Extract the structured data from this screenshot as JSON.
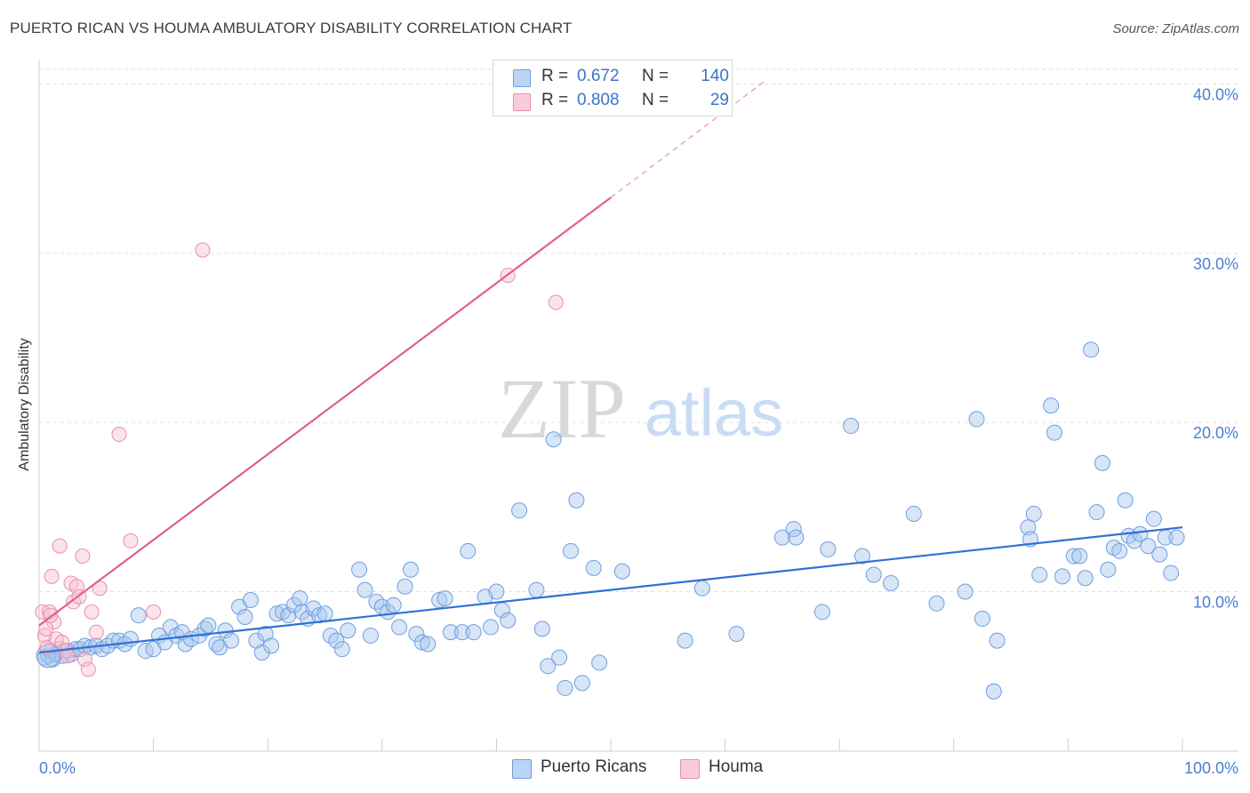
{
  "header": {
    "title": "PUERTO RICAN VS HOUMA AMBULATORY DISABILITY CORRELATION CHART",
    "source": "Source: ZipAtlas.com"
  },
  "watermark": {
    "zip": "ZIP",
    "atlas": "atlas"
  },
  "stats": {
    "blue": {
      "r_label": "R =",
      "r_value": "0.672",
      "n_label": "N =",
      "n_value": "140"
    },
    "pink": {
      "r_label": "R =",
      "r_value": "0.808",
      "n_label": "N =",
      "n_value": "29"
    }
  },
  "legend": {
    "blue": "Puerto Ricans",
    "pink": "Houma"
  },
  "colors": {
    "blue_fill": "#a9c6ee",
    "blue_stroke": "#6d9fe0",
    "blue_line": "#2f72d4",
    "pink_fill": "#f7c1d1",
    "pink_stroke": "#ea8faa",
    "pink_line": "#e0608a",
    "tick_label": "#4a7fce",
    "grid": "#dfdfdf"
  },
  "chart_data": {
    "type": "scatter",
    "title": "PUERTO RICAN VS HOUMA AMBULATORY DISABILITY CORRELATION CHART",
    "xlabel": "",
    "ylabel": "Ambulatory Disability",
    "xlim": [
      0,
      100
    ],
    "ylim": [
      1.3,
      41.3
    ],
    "x_tick_labels": [
      "0.0%",
      "100.0%"
    ],
    "y_ticks": [
      10,
      20,
      30,
      40
    ],
    "y_tick_labels": [
      "10.0%",
      "20.0%",
      "30.0%",
      "40.0%"
    ],
    "grid": true,
    "legend_position": "bottom-center",
    "series": [
      {
        "name": "Puerto Ricans",
        "color": "#6d9fe0",
        "trend": {
          "x": [
            0,
            100
          ],
          "y": [
            6.4,
            13.8
          ]
        },
        "points": [
          [
            0.5,
            6.1
          ],
          [
            0.8,
            6.2
          ],
          [
            1.0,
            6.5
          ],
          [
            1.2,
            6.0
          ],
          [
            1.5,
            6.3
          ],
          [
            1.8,
            6.6
          ],
          [
            2.0,
            6.2
          ],
          [
            2.5,
            6.5
          ],
          [
            2.8,
            6.3
          ],
          [
            3.2,
            6.6
          ],
          [
            3.6,
            6.6
          ],
          [
            4.0,
            6.8
          ],
          [
            4.5,
            6.7
          ],
          [
            5.0,
            6.8
          ],
          [
            5.5,
            6.6
          ],
          [
            6.0,
            6.8
          ],
          [
            6.5,
            7.1
          ],
          [
            7.0,
            7.1
          ],
          [
            7.5,
            6.9
          ],
          [
            8.0,
            7.2
          ],
          [
            8.7,
            8.6
          ],
          [
            9.3,
            6.5
          ],
          [
            10.0,
            6.6
          ],
          [
            10.5,
            7.4
          ],
          [
            11.0,
            7.0
          ],
          [
            11.5,
            7.9
          ],
          [
            12.0,
            7.4
          ],
          [
            12.5,
            7.6
          ],
          [
            12.8,
            6.9
          ],
          [
            13.3,
            7.2
          ],
          [
            14.0,
            7.4
          ],
          [
            14.5,
            7.8
          ],
          [
            14.8,
            8.0
          ],
          [
            15.5,
            6.9
          ],
          [
            15.8,
            6.7
          ],
          [
            16.3,
            7.7
          ],
          [
            16.8,
            7.1
          ],
          [
            17.5,
            9.1
          ],
          [
            18.0,
            8.5
          ],
          [
            18.5,
            9.5
          ],
          [
            19.0,
            7.1
          ],
          [
            19.5,
            6.4
          ],
          [
            19.8,
            7.5
          ],
          [
            20.3,
            6.8
          ],
          [
            20.8,
            8.7
          ],
          [
            21.3,
            8.8
          ],
          [
            21.8,
            8.6
          ],
          [
            22.3,
            9.2
          ],
          [
            22.8,
            9.6
          ],
          [
            23.0,
            8.8
          ],
          [
            23.5,
            8.4
          ],
          [
            24.0,
            9.0
          ],
          [
            24.5,
            8.6
          ],
          [
            25.0,
            8.7
          ],
          [
            25.5,
            7.4
          ],
          [
            26.0,
            7.1
          ],
          [
            26.5,
            6.6
          ],
          [
            27.0,
            7.7
          ],
          [
            28.0,
            11.3
          ],
          [
            28.5,
            10.1
          ],
          [
            29.0,
            7.4
          ],
          [
            29.5,
            9.4
          ],
          [
            30.0,
            9.1
          ],
          [
            30.5,
            8.8
          ],
          [
            31.0,
            9.2
          ],
          [
            31.5,
            7.9
          ],
          [
            32.0,
            10.3
          ],
          [
            32.5,
            11.3
          ],
          [
            33.0,
            7.5
          ],
          [
            33.5,
            7.0
          ],
          [
            34.0,
            6.9
          ],
          [
            35.0,
            9.5
          ],
          [
            35.5,
            9.6
          ],
          [
            36.0,
            7.6
          ],
          [
            37.5,
            12.4
          ],
          [
            37.0,
            7.6
          ],
          [
            38.0,
            7.6
          ],
          [
            39.0,
            9.7
          ],
          [
            39.5,
            7.9
          ],
          [
            40.0,
            10.0
          ],
          [
            40.5,
            8.9
          ],
          [
            41.0,
            8.3
          ],
          [
            42.0,
            14.8
          ],
          [
            43.5,
            10.1
          ],
          [
            44.0,
            7.8
          ],
          [
            44.5,
            5.6
          ],
          [
            45.0,
            19.0
          ],
          [
            45.5,
            6.1
          ],
          [
            46.0,
            4.3
          ],
          [
            46.5,
            12.4
          ],
          [
            47.0,
            15.4
          ],
          [
            47.5,
            4.6
          ],
          [
            48.5,
            11.4
          ],
          [
            49.0,
            5.8
          ],
          [
            51.0,
            11.2
          ],
          [
            56.5,
            7.1
          ],
          [
            58.0,
            10.2
          ],
          [
            61.0,
            7.5
          ],
          [
            65.0,
            13.2
          ],
          [
            66.0,
            13.7
          ],
          [
            66.2,
            13.2
          ],
          [
            68.5,
            8.8
          ],
          [
            69.0,
            12.5
          ],
          [
            71.0,
            19.8
          ],
          [
            72.0,
            12.1
          ],
          [
            73.0,
            11.0
          ],
          [
            74.5,
            10.5
          ],
          [
            76.5,
            14.6
          ],
          [
            78.5,
            9.3
          ],
          [
            81.0,
            10.0
          ],
          [
            82.0,
            20.2
          ],
          [
            82.5,
            8.4
          ],
          [
            83.5,
            4.1
          ],
          [
            83.8,
            7.1
          ],
          [
            86.5,
            13.8
          ],
          [
            86.7,
            13.1
          ],
          [
            87.0,
            14.6
          ],
          [
            87.5,
            11.0
          ],
          [
            88.5,
            21.0
          ],
          [
            88.8,
            19.4
          ],
          [
            89.5,
            10.9
          ],
          [
            90.5,
            12.1
          ],
          [
            91.0,
            12.1
          ],
          [
            91.5,
            10.8
          ],
          [
            92.0,
            24.3
          ],
          [
            92.5,
            14.7
          ],
          [
            93.0,
            17.6
          ],
          [
            93.5,
            11.3
          ],
          [
            94.0,
            12.6
          ],
          [
            94.5,
            12.4
          ],
          [
            95.0,
            15.4
          ],
          [
            95.3,
            13.3
          ],
          [
            95.8,
            13.0
          ],
          [
            96.3,
            13.4
          ],
          [
            97.0,
            12.7
          ],
          [
            97.5,
            14.3
          ],
          [
            98.0,
            12.2
          ],
          [
            98.5,
            13.2
          ],
          [
            99.0,
            11.1
          ],
          [
            99.5,
            13.2
          ]
        ]
      },
      {
        "name": "Houma",
        "color": "#ea8faa",
        "trend": {
          "x": [
            0,
            50
          ],
          "y": [
            8.0,
            33.3
          ]
        },
        "trend_dashed_extension": {
          "x": [
            50,
            63.5
          ],
          "y": [
            33.3,
            40.2
          ]
        },
        "points": [
          [
            0.3,
            8.8
          ],
          [
            0.5,
            7.4
          ],
          [
            0.7,
            6.7
          ],
          [
            0.9,
            8.8
          ],
          [
            1.1,
            10.9
          ],
          [
            1.3,
            8.2
          ],
          [
            1.5,
            7.2
          ],
          [
            1.8,
            12.7
          ],
          [
            2.0,
            7.0
          ],
          [
            2.3,
            6.5
          ],
          [
            2.5,
            6.2
          ],
          [
            2.8,
            10.5
          ],
          [
            3.0,
            9.4
          ],
          [
            3.3,
            10.3
          ],
          [
            3.5,
            9.7
          ],
          [
            3.8,
            12.1
          ],
          [
            4.0,
            6.0
          ],
          [
            4.3,
            5.4
          ],
          [
            4.6,
            8.8
          ],
          [
            5.0,
            7.6
          ],
          [
            5.3,
            10.2
          ],
          [
            7.0,
            19.3
          ],
          [
            8.0,
            13.0
          ],
          [
            10.0,
            8.8
          ],
          [
            14.3,
            30.2
          ],
          [
            41.0,
            28.7
          ],
          [
            45.2,
            27.1
          ],
          [
            0.6,
            7.8
          ],
          [
            1.0,
            8.6
          ]
        ]
      }
    ]
  }
}
